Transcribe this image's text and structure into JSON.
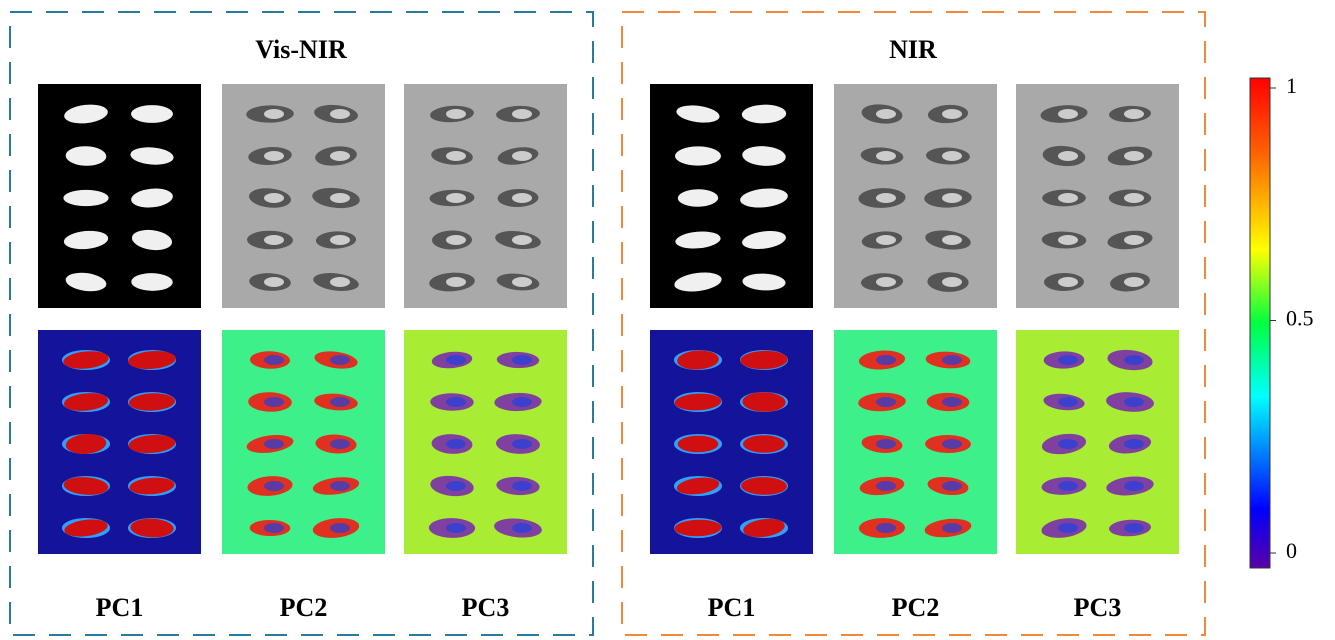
{
  "panels": [
    {
      "title": "Vis-NIR",
      "columns": [
        "PC1",
        "PC2",
        "PC3"
      ]
    },
    {
      "title": "NIR",
      "columns": [
        "PC1",
        "PC2",
        "PC3"
      ]
    }
  ],
  "colorbar": {
    "lim": [
      0,
      1
    ],
    "ticks": [
      0,
      0.5,
      1
    ]
  }
}
